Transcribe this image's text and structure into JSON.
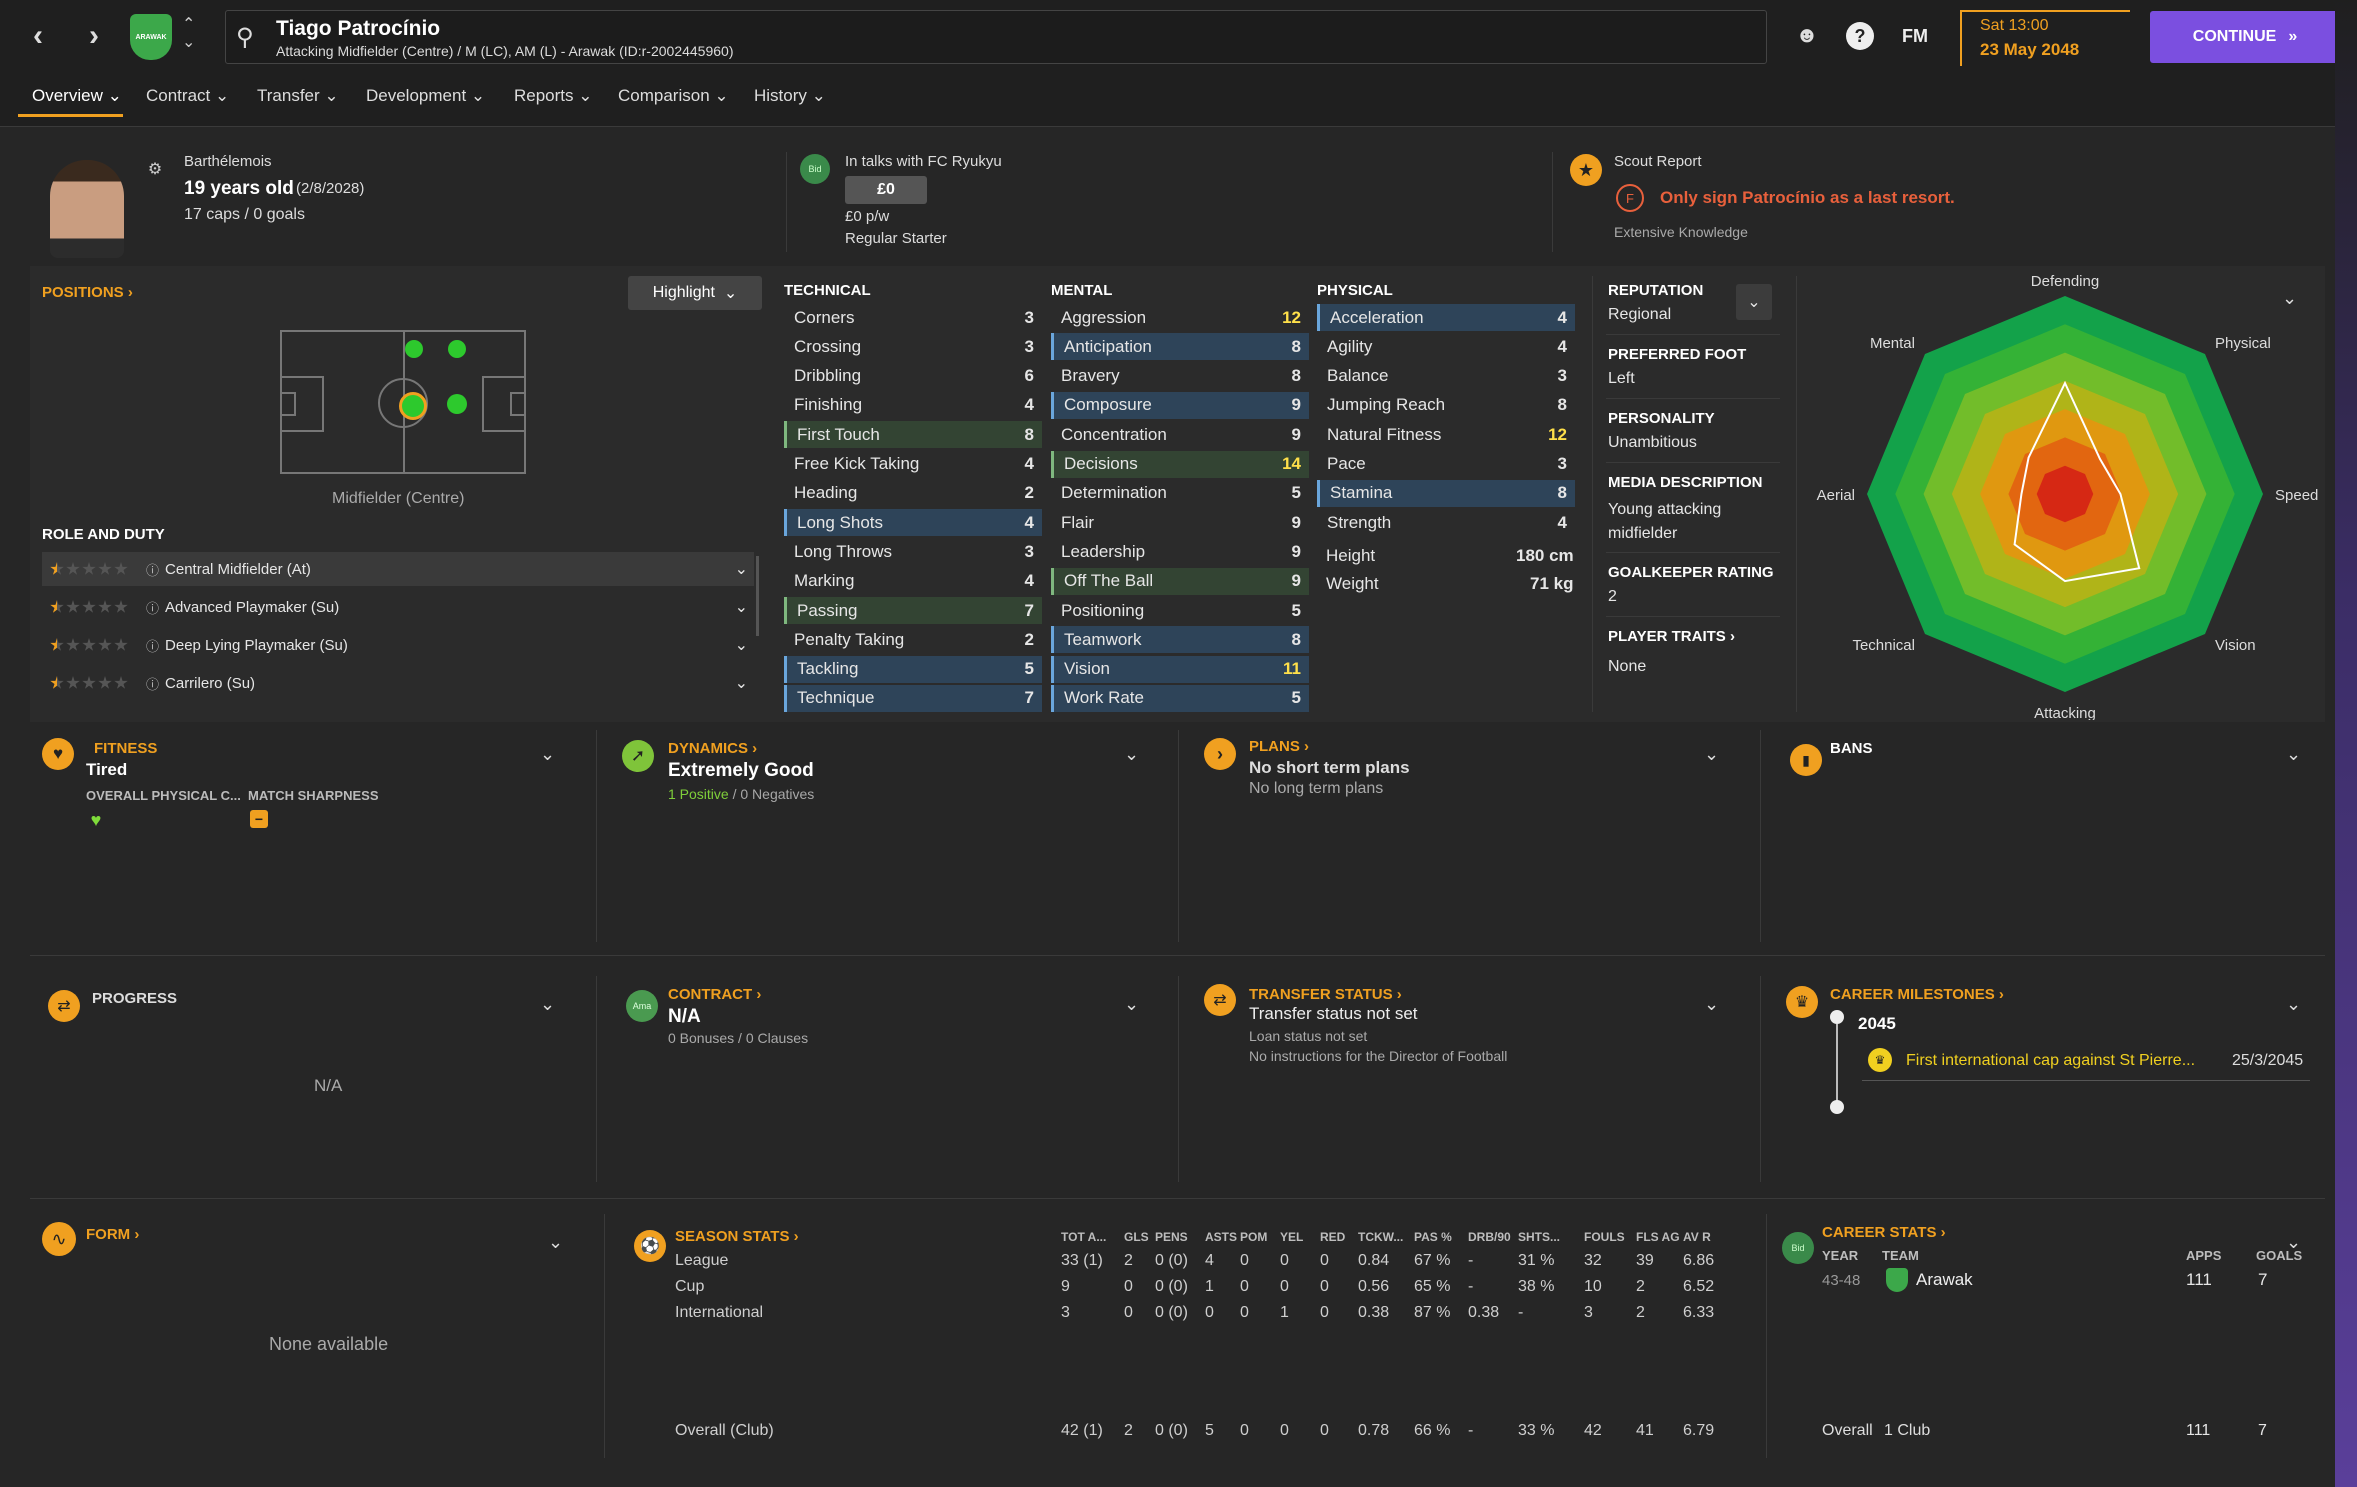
{
  "header": {
    "player_name": "Tiago Patrocínio",
    "player_sub": "Attacking Midfielder (Centre) / M (LC), AM (L) - Arawak (ID:r-2002445960)",
    "date_day": "Sat 13:00",
    "date": "23 May 2048",
    "continue_label": "CONTINUE",
    "fm_label": "FM",
    "club_badge": "ARAWAK"
  },
  "tabs": [
    "Overview",
    "Contract",
    "Transfer",
    "Development",
    "Reports",
    "Comparison",
    "History"
  ],
  "info": {
    "nationality": "Barthélemois",
    "age": "19 years old",
    "dob": "(2/8/2028)",
    "caps": "17 caps / 0 goals",
    "talks": "In talks with FC Ryukyu",
    "bid_badge": "Bid",
    "fee": "£0",
    "wage": "£0 p/w",
    "status": "Regular Starter",
    "scout_title": "Scout Report",
    "scout_grade": "F",
    "scout_text": "Only sign Patrocínio as a last resort.",
    "scout_knowledge": "Extensive Knowledge"
  },
  "positions": {
    "title": "POSITIONS",
    "highlight": "Highlight",
    "pos_label": "Midfielder (Centre)",
    "role_title": "ROLE AND DUTY",
    "roles": [
      {
        "name": "Central Midfielder (At)",
        "stars": 0.5
      },
      {
        "name": "Advanced Playmaker (Su)",
        "stars": 0.5
      },
      {
        "name": "Deep Lying Playmaker (Su)",
        "stars": 0.5
      },
      {
        "name": "Carrilero (Su)",
        "stars": 0.5
      }
    ]
  },
  "attributes": {
    "technical_title": "TECHNICAL",
    "mental_title": "MENTAL",
    "physical_title": "PHYSICAL",
    "technical": [
      {
        "n": "Corners",
        "v": "3"
      },
      {
        "n": "Crossing",
        "v": "3"
      },
      {
        "n": "Dribbling",
        "v": "6"
      },
      {
        "n": "Finishing",
        "v": "4"
      },
      {
        "n": "First Touch",
        "v": "8",
        "hl": "green"
      },
      {
        "n": "Free Kick Taking",
        "v": "4"
      },
      {
        "n": "Heading",
        "v": "2"
      },
      {
        "n": "Long Shots",
        "v": "4",
        "hl": "blue"
      },
      {
        "n": "Long Throws",
        "v": "3"
      },
      {
        "n": "Marking",
        "v": "4"
      },
      {
        "n": "Passing",
        "v": "7",
        "hl": "green"
      },
      {
        "n": "Penalty Taking",
        "v": "2"
      },
      {
        "n": "Tackling",
        "v": "5",
        "hl": "blue"
      },
      {
        "n": "Technique",
        "v": "7",
        "hl": "blue"
      }
    ],
    "mental": [
      {
        "n": "Aggression",
        "v": "12"
      },
      {
        "n": "Anticipation",
        "v": "8",
        "hl": "blue"
      },
      {
        "n": "Bravery",
        "v": "8"
      },
      {
        "n": "Composure",
        "v": "9",
        "hl": "blue"
      },
      {
        "n": "Concentration",
        "v": "9"
      },
      {
        "n": "Decisions",
        "v": "14",
        "hl": "green"
      },
      {
        "n": "Determination",
        "v": "5"
      },
      {
        "n": "Flair",
        "v": "9"
      },
      {
        "n": "Leadership",
        "v": "9"
      },
      {
        "n": "Off The Ball",
        "v": "9",
        "hl": "green"
      },
      {
        "n": "Positioning",
        "v": "5"
      },
      {
        "n": "Teamwork",
        "v": "8",
        "hl": "blue"
      },
      {
        "n": "Vision",
        "v": "11",
        "hl": "blue"
      },
      {
        "n": "Work Rate",
        "v": "5",
        "hl": "blue"
      }
    ],
    "physical": [
      {
        "n": "Acceleration",
        "v": "4",
        "hl": "blue"
      },
      {
        "n": "Agility",
        "v": "4"
      },
      {
        "n": "Balance",
        "v": "3"
      },
      {
        "n": "Jumping Reach",
        "v": "8"
      },
      {
        "n": "Natural Fitness",
        "v": "12"
      },
      {
        "n": "Pace",
        "v": "3"
      },
      {
        "n": "Stamina",
        "v": "8",
        "hl": "blue"
      },
      {
        "n": "Strength",
        "v": "4"
      }
    ],
    "height_label": "Height",
    "height": "180 cm",
    "weight_label": "Weight",
    "weight": "71 kg"
  },
  "profile": {
    "reputation_label": "REPUTATION",
    "reputation": "Regional",
    "foot_label": "PREFERRED FOOT",
    "foot": "Left",
    "personality_label": "PERSONALITY",
    "personality": "Unambitious",
    "media_label": "MEDIA DESCRIPTION",
    "media": "Young attacking midfielder",
    "gk_label": "GOALKEEPER RATING",
    "gk": "2",
    "traits_label": "PLAYER TRAITS",
    "traits": "None"
  },
  "radar": {
    "labels": [
      "Defending",
      "Physical",
      "Speed",
      "Vision",
      "Attacking",
      "Technical",
      "Aerial",
      "Mental"
    ],
    "values": [
      0.56,
      0.25,
      0.28,
      0.53,
      0.44,
      0.36,
      0.22,
      0.26
    ],
    "colors": [
      "#13a24a",
      "#34b236",
      "#72bd2a",
      "#b0b418",
      "#e09810",
      "#e26610",
      "#d62814"
    ]
  },
  "cards": {
    "fitness_title": "FITNESS",
    "fitness": "Tired",
    "overall_phys": "OVERALL PHYSICAL C...",
    "match_sharp": "MATCH SHARPNESS",
    "dynamics_title": "DYNAMICS",
    "dynamics": "Extremely Good",
    "positives": "1 Positive",
    "slash": "/",
    "negatives": "0 Negatives",
    "plans_title": "PLANS",
    "plans1": "No short term plans",
    "plans2": "No long term plans",
    "bans_title": "BANS",
    "progress_title": "PROGRESS",
    "progress_na": "N/A",
    "contract_title": "CONTRACT",
    "contract_badge": "Ama",
    "contract": "N/A",
    "contract_sub": "0 Bonuses / 0 Clauses",
    "transfer_title": "TRANSFER STATUS",
    "transfer": "Transfer status not set",
    "loan": "Loan status not set",
    "dof": "No instructions for the Director of Football",
    "milestones_title": "CAREER MILESTONES",
    "ms_year": "2045",
    "ms_text": "First international cap against St Pierre...",
    "ms_date": "25/3/2045",
    "form_title": "FORM",
    "form_na": "None available"
  },
  "season": {
    "title": "SEASON STATS",
    "cols": [
      "TOT A...",
      "GLS",
      "PENS",
      "ASTS",
      "POM",
      "YEL",
      "RED",
      "TCKW...",
      "PAS %",
      "DRB/90",
      "SHTS...",
      "FOULS",
      "FLS AG",
      "AV R"
    ],
    "rows": [
      {
        "label": "League",
        "vals": [
          "33 (1)",
          "2",
          "0 (0)",
          "4",
          "0",
          "0",
          "0",
          "0.84",
          "67 %",
          "-",
          "31 %",
          "32",
          "39",
          "6.86"
        ]
      },
      {
        "label": "Cup",
        "vals": [
          "9",
          "0",
          "0 (0)",
          "1",
          "0",
          "0",
          "0",
          "0.56",
          "65 %",
          "-",
          "38 %",
          "10",
          "2",
          "6.52"
        ]
      },
      {
        "label": "International",
        "vals": [
          "3",
          "0",
          "0 (0)",
          "0",
          "0",
          "1",
          "0",
          "0.38",
          "87 %",
          "0.38",
          "-",
          "3",
          "2",
          "6.33"
        ]
      }
    ],
    "overall": {
      "label": "Overall (Club)",
      "vals": [
        "42 (1)",
        "2",
        "0 (0)",
        "5",
        "0",
        "0",
        "0",
        "0.78",
        "66 %",
        "-",
        "33 %",
        "42",
        "41",
        "6.79"
      ]
    }
  },
  "career": {
    "title": "CAREER STATS",
    "bid_badge": "Bid",
    "year_h": "YEAR",
    "team_h": "TEAM",
    "apps_h": "APPS",
    "goals_h": "GOALS",
    "year": "43-48",
    "team": "Arawak",
    "apps": "111",
    "goals": "7",
    "overall": "Overall",
    "clubs": "1 Club",
    "oapps": "111",
    "ogoals": "7"
  }
}
